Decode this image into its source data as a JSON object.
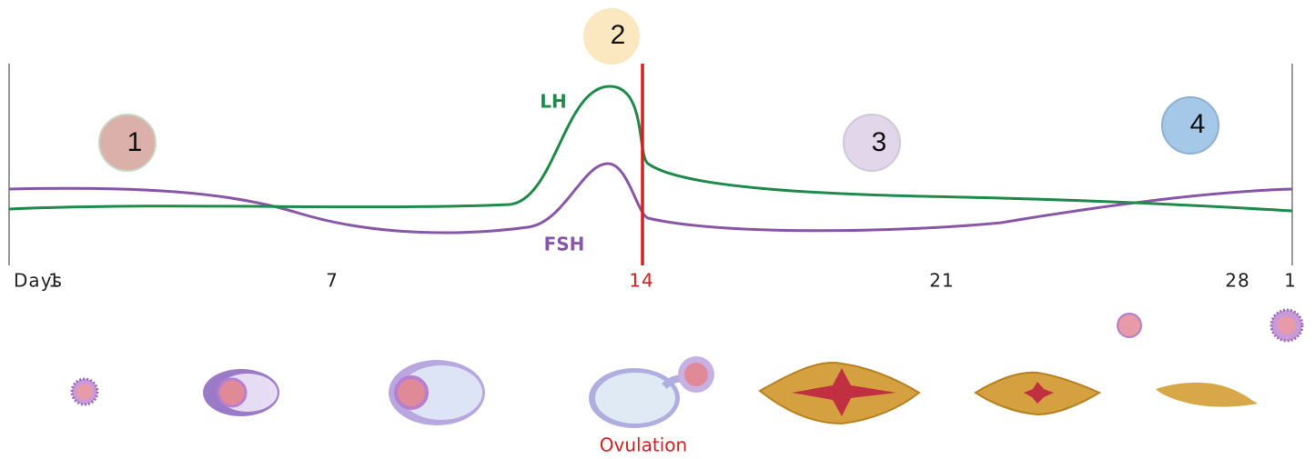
{
  "markers": [
    "1",
    "2",
    "3",
    "4"
  ],
  "curves": {
    "lh": "LH",
    "fsh": "FSH"
  },
  "axis": {
    "label": "Days",
    "ticks": [
      "1",
      "7",
      "14",
      "21",
      "28",
      "1"
    ]
  },
  "event": "Ovulation"
}
